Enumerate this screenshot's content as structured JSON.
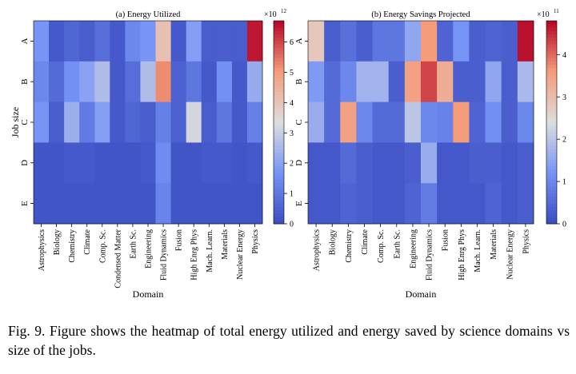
{
  "chart_data": [
    {
      "type": "heatmap",
      "title": "(a) Energy Utilized",
      "xlabel": "Domain",
      "ylabel": "Job size",
      "x_categories": [
        "Astrophysics",
        "Biology",
        "Chemistry",
        "Climate",
        "Comp. Sc.",
        "Condensed Matter",
        "Earth Sc.",
        "Engineering",
        "Fluid Dynamics",
        "Fusion",
        "High Enrg Phys",
        "Mach. Learn.",
        "Materials",
        "Nuclear Energy",
        "Physics"
      ],
      "y_categories": [
        "A",
        "B",
        "C",
        "D",
        "E"
      ],
      "values": [
        [
          1.7,
          0.3,
          0.6,
          0.4,
          0.8,
          0.3,
          1.4,
          1.7,
          4.1,
          0.3,
          1.9,
          0.4,
          0.4,
          0.4,
          6.5
        ],
        [
          1.4,
          0.7,
          1.6,
          2.0,
          2.6,
          0.3,
          0.8,
          2.6,
          5.2,
          0.5,
          1.0,
          0.3,
          1.6,
          0.3,
          2.2
        ],
        [
          1.7,
          0.4,
          2.3,
          1.1,
          1.9,
          0.3,
          0.6,
          0.4,
          1.2,
          0.5,
          3.2,
          0.4,
          1.0,
          0.3,
          1.2
        ],
        [
          0.2,
          0.2,
          0.3,
          0.3,
          0.2,
          0.2,
          0.2,
          0.3,
          1.5,
          0.2,
          0.2,
          0.3,
          0.3,
          0.2,
          0.3
        ],
        [
          0.2,
          0.2,
          0.2,
          0.2,
          0.2,
          0.2,
          0.2,
          0.2,
          1.3,
          0.2,
          0.2,
          0.2,
          0.2,
          0.2,
          0.2
        ]
      ],
      "colorbar": {
        "min": 0,
        "max": 6.7,
        "ticks": [
          "0",
          "1",
          "2",
          "3",
          "4",
          "5",
          "6"
        ],
        "multiplier": "×10",
        "exponent": "12"
      },
      "colormap": "coolwarm"
    },
    {
      "type": "heatmap",
      "title": "(b) Energy Savings Projected",
      "xlabel": "Domain",
      "ylabel": "",
      "x_categories": [
        "Astrophysics",
        "Biology",
        "Chemistry",
        "Climate",
        "Comp. Sc.",
        "Earth Sc.",
        "Engineering",
        "Fluid Dynamics",
        "Fusion",
        "High Enrg Phys",
        "Mach. Learn.",
        "Materials",
        "Nuclear Energy",
        "Physics"
      ],
      "y_categories": [
        "A",
        "B",
        "C",
        "D",
        "E"
      ],
      "values": [
        [
          2.8,
          0.3,
          0.6,
          0.3,
          0.7,
          0.7,
          1.5,
          3.6,
          0.4,
          1.2,
          0.3,
          0.4,
          0.3,
          4.7
        ],
        [
          1.3,
          0.5,
          1.0,
          1.7,
          1.7,
          0.3,
          3.5,
          4.3,
          3.3,
          0.3,
          0.3,
          1.5,
          0.3,
          1.8
        ],
        [
          1.6,
          0.5,
          3.5,
          1.0,
          0.5,
          0.5,
          2.0,
          1.0,
          0.9,
          3.6,
          0.4,
          1.1,
          0.3,
          1.0
        ],
        [
          0.2,
          0.2,
          0.5,
          0.3,
          0.2,
          0.2,
          0.3,
          1.6,
          0.2,
          0.2,
          0.3,
          0.3,
          0.2,
          0.3
        ],
        [
          0.2,
          0.2,
          0.4,
          0.3,
          0.2,
          0.2,
          0.4,
          0.8,
          0.2,
          0.2,
          0.2,
          0.4,
          0.2,
          0.3
        ]
      ],
      "colorbar": {
        "min": 0,
        "max": 4.8,
        "ticks": [
          "0",
          "1",
          "2",
          "3",
          "4"
        ],
        "multiplier": "×10",
        "exponent": "11"
      },
      "colormap": "coolwarm"
    }
  ],
  "caption": "Fig. 9.  Figure shows the heatmap of total energy utilized and energy saved by science domains vs size of the jobs."
}
